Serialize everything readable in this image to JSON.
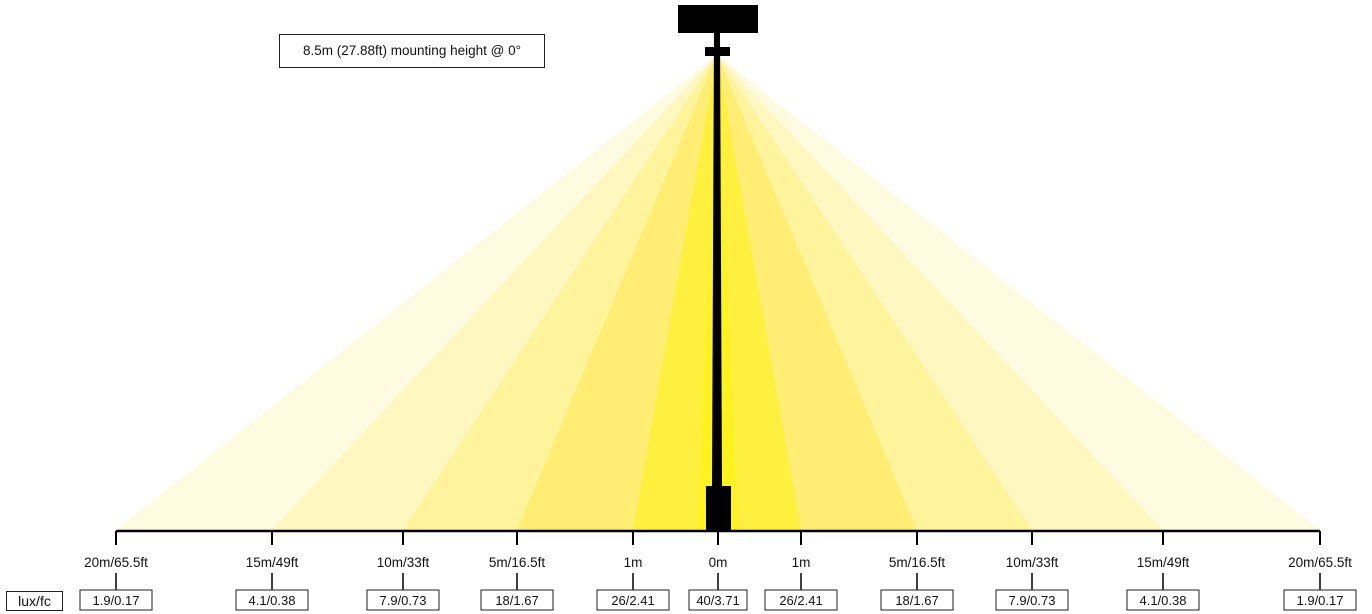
{
  "mounting_note": "8.5m (27.88ft) mounting height @ 0°",
  "unit_label": "lux/fc",
  "beam_colors": [
    "#fffbe0",
    "#fff7bf",
    "#fff39c",
    "#ffee73",
    "#fff040",
    "#fff21e"
  ],
  "pole_color": "#000000",
  "distances": [
    {
      "label": "20m/65.5ft",
      "value": "1.9/0.17"
    },
    {
      "label": "15m/49ft",
      "value": "4.1/0.38"
    },
    {
      "label": "10m/33ft",
      "value": "7.9/0.73"
    },
    {
      "label": "5m/16.5ft",
      "value": "18/1.67"
    },
    {
      "label": "1m",
      "value": "26/2.41"
    },
    {
      "label": "0m",
      "value": "40/3.71"
    },
    {
      "label": "1m",
      "value": "26/2.41"
    },
    {
      "label": "5m/16.5ft",
      "value": "18/1.67"
    },
    {
      "label": "10m/33ft",
      "value": "7.9/0.73"
    },
    {
      "label": "15m/49ft",
      "value": "4.1/0.38"
    },
    {
      "label": "20m/65.5ft",
      "value": "1.9/0.17"
    }
  ]
}
